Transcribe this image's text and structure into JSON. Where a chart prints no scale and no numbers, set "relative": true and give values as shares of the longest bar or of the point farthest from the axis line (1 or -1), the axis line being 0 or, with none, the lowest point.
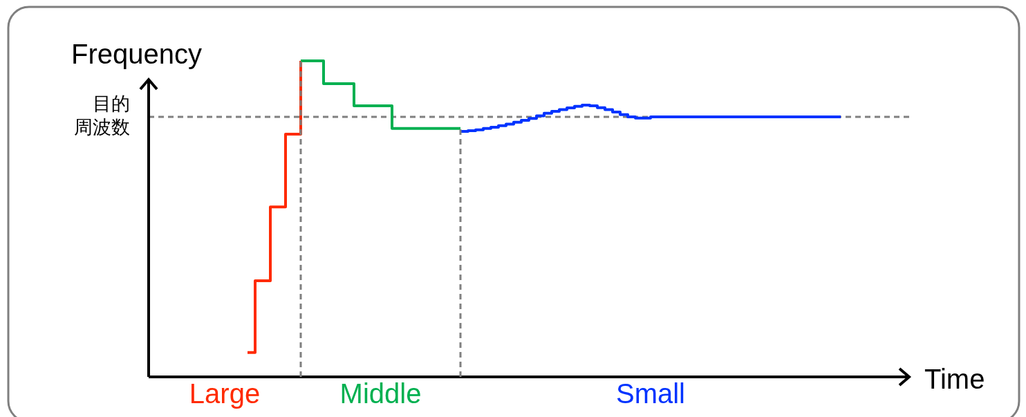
{
  "chart_data": {
    "type": "step",
    "relative": true,
    "ylabel": "Frequency",
    "xlabel": "Time",
    "legend": false,
    "categories": [
      null,
      null,
      null,
      null,
      null,
      null,
      null,
      null,
      null,
      null,
      null,
      null,
      null,
      null,
      null,
      null,
      null,
      null,
      null,
      null,
      null,
      null,
      null,
      null,
      null,
      null,
      null,
      null,
      null,
      null,
      null,
      null,
      null,
      null,
      null,
      null,
      null,
      null,
      null,
      null,
      null,
      null,
      null,
      null,
      null,
      null,
      null,
      null,
      null,
      null,
      null,
      null,
      null,
      null,
      null,
      null,
      null,
      null,
      null,
      null,
      null,
      null,
      null,
      null,
      null,
      null,
      null,
      null,
      null,
      null,
      null,
      null,
      null,
      null,
      null,
      null,
      null,
      null,
      null,
      null,
      null,
      null,
      null,
      null,
      null,
      null,
      null,
      null,
      null,
      null,
      null,
      null,
      null,
      null,
      null,
      null,
      null,
      null,
      null,
      null,
      null
    ],
    "series": [
      {
        "name": "Large",
        "color": "#ff2a00",
        "values": [
          null,
          null,
          null,
          null,
          null,
          null,
          null,
          null,
          null,
          null,
          null,
          null,
          null,
          0.077,
          0.304,
          0.304,
          0.538,
          0.538,
          0.768,
          0.768,
          1,
          null,
          null,
          null,
          null,
          null,
          null,
          null,
          null,
          null,
          null,
          null,
          null,
          null,
          null,
          null,
          null,
          null,
          null,
          null,
          null,
          null,
          null,
          null,
          null,
          null,
          null,
          null,
          null,
          null,
          null,
          null,
          null,
          null,
          null,
          null,
          null,
          null,
          null,
          null,
          null,
          null,
          null,
          null,
          null,
          null,
          null,
          null,
          null,
          null,
          null,
          null,
          null,
          null,
          null,
          null,
          null,
          null,
          null,
          null,
          null,
          null,
          null,
          null,
          null,
          null,
          null,
          null,
          null,
          null,
          null,
          null,
          null,
          null,
          null,
          null,
          null,
          null,
          null,
          null,
          null
        ]
      },
      {
        "name": "Middle",
        "color": "#00b050",
        "values": [
          null,
          null,
          null,
          null,
          null,
          null,
          null,
          null,
          null,
          null,
          null,
          null,
          null,
          null,
          null,
          null,
          null,
          null,
          null,
          null,
          1,
          1,
          1,
          0.928,
          0.928,
          0.928,
          0.928,
          0.858,
          0.858,
          0.858,
          0.858,
          0.858,
          0.786,
          0.786,
          0.786,
          0.786,
          0.786,
          0.786,
          0.786,
          0.786,
          0.786,
          0.786,
          null,
          null,
          null,
          null,
          null,
          null,
          null,
          null,
          null,
          null,
          null,
          null,
          null,
          null,
          null,
          null,
          null,
          null,
          null,
          null,
          null,
          null,
          null,
          null,
          null,
          null,
          null,
          null,
          null,
          null,
          null,
          null,
          null,
          null,
          null,
          null,
          null,
          null,
          null,
          null,
          null,
          null,
          null,
          null,
          null,
          null,
          null,
          null,
          null,
          null,
          null,
          null,
          null,
          null,
          null,
          null,
          null,
          null,
          null
        ]
      },
      {
        "name": "Small",
        "color": "#0033ff",
        "values": [
          null,
          null,
          null,
          null,
          null,
          null,
          null,
          null,
          null,
          null,
          null,
          null,
          null,
          null,
          null,
          null,
          null,
          null,
          null,
          null,
          null,
          null,
          null,
          null,
          null,
          null,
          null,
          null,
          null,
          null,
          null,
          null,
          null,
          null,
          null,
          null,
          null,
          null,
          null,
          null,
          null,
          0.777,
          0.779,
          0.782,
          0.786,
          0.79,
          0.795,
          0.8,
          0.806,
          0.812,
          0.818,
          0.826,
          0.834,
          0.84,
          0.846,
          0.851,
          0.856,
          0.86,
          0.858,
          0.852,
          0.846,
          0.838,
          0.83,
          0.823,
          0.819,
          0.819,
          0.823,
          0.823,
          0.823,
          0.823,
          0.823,
          0.823,
          0.823,
          0.823,
          0.823,
          0.823,
          0.823,
          0.823,
          0.823,
          0.823,
          0.823,
          0.823,
          0.823,
          0.823,
          0.823,
          0.823,
          0.823,
          0.823,
          0.823,
          0.823,
          0.823,
          0.823,
          null,
          null,
          null,
          null,
          null,
          null,
          null,
          null,
          null
        ]
      }
    ],
    "ref_lines": [
      {
        "axis": "y",
        "value": 0.823,
        "label": "目的周波数",
        "color": "#808080",
        "line_style": "dashed"
      }
    ]
  }
}
